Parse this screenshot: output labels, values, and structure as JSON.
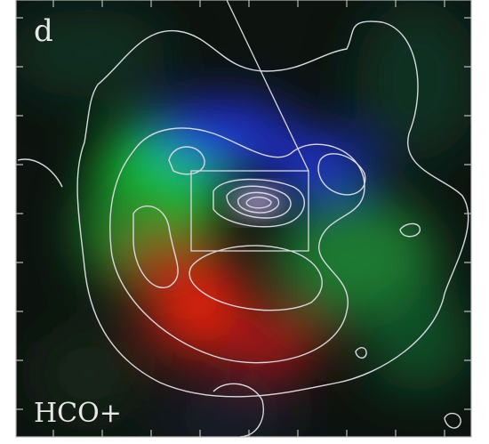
{
  "panel": {
    "label": "d",
    "line": "HCO+"
  }
}
